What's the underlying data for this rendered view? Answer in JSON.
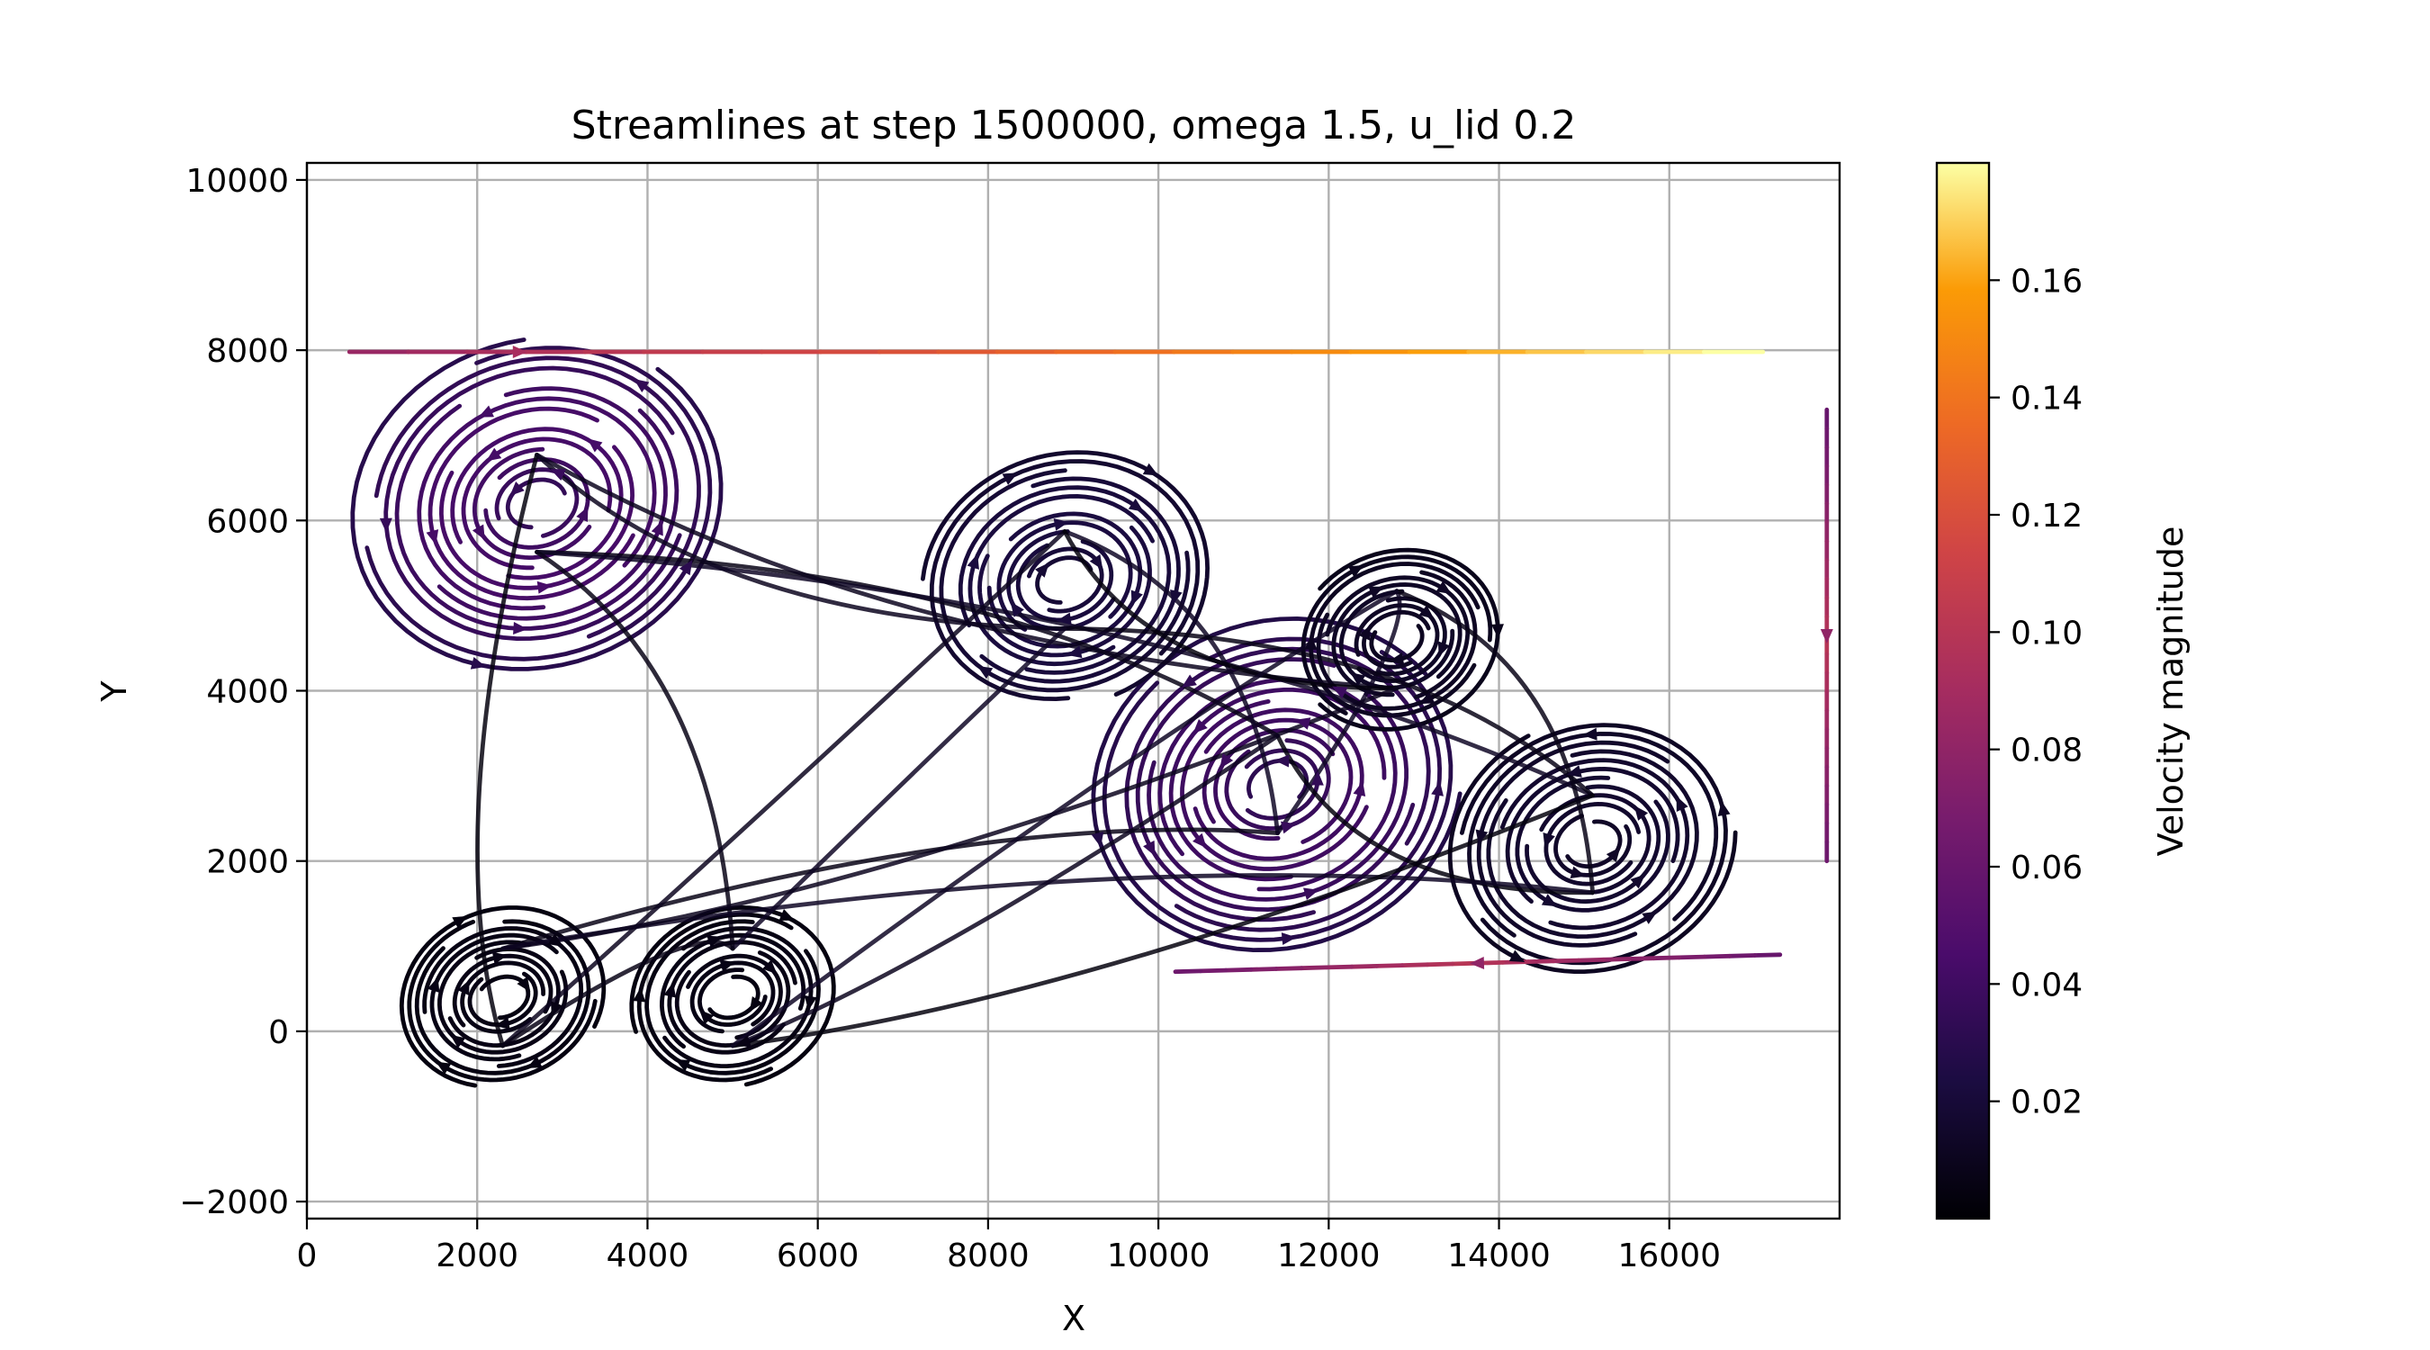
{
  "chart_data": {
    "type": "streamplot",
    "title": "Streamlines at step 1500000, omega 1.5, u_lid 0.2",
    "xlabel": "X",
    "ylabel": "Y",
    "xlim": [
      0,
      18000
    ],
    "ylim": [
      -2200,
      10200
    ],
    "xticks": [
      0,
      2000,
      4000,
      6000,
      8000,
      10000,
      12000,
      14000,
      16000
    ],
    "yticks": [
      -2000,
      0,
      2000,
      4000,
      6000,
      8000,
      10000
    ],
    "grid": true,
    "colormap": "inferno",
    "colorbar": {
      "label": "Velocity magnitude",
      "range": [
        0.0,
        0.18
      ],
      "ticks": [
        0.02,
        0.04,
        0.06,
        0.08,
        0.1,
        0.12,
        0.14,
        0.16
      ],
      "tick_labels": [
        "0.02",
        "0.04",
        "0.06",
        "0.08",
        "0.10",
        "0.12",
        "0.14",
        "0.16"
      ]
    },
    "domain": {
      "x": [
        0,
        18000
      ],
      "y": [
        0,
        8000
      ]
    },
    "lid_speed": 0.2,
    "vortices": [
      {
        "name": "upper-left vortex",
        "x": 2700,
        "y": 6200,
        "rotation": "counterclockwise",
        "max_speed": 0.065
      },
      {
        "name": "central vortex",
        "x": 11400,
        "y": 2900,
        "rotation": "counterclockwise",
        "max_speed": 0.06
      },
      {
        "name": "upper-middle vortex",
        "x": 8900,
        "y": 5300,
        "rotation": "clockwise",
        "max_speed": 0.035
      },
      {
        "name": "right vortex",
        "x": 15100,
        "y": 2200,
        "rotation": "counterclockwise",
        "max_speed": 0.025
      },
      {
        "name": "lower-left small vortex",
        "x": 2300,
        "y": 400,
        "rotation": "clockwise",
        "max_speed": 0.01
      },
      {
        "name": "lower-middle small vortex",
        "x": 5000,
        "y": 400,
        "rotation": "clockwise",
        "max_speed": 0.01
      },
      {
        "name": "mid-right eddy",
        "x": 12800,
        "y": 4600,
        "rotation": "clockwise",
        "max_speed": 0.02
      }
    ],
    "boundary_flows": [
      {
        "name": "lid flow",
        "from": [
          500,
          7980
        ],
        "to": [
          17100,
          7980
        ],
        "speed_range": [
          0.08,
          0.18
        ]
      },
      {
        "name": "right wall descent",
        "from": [
          17850,
          7300
        ],
        "to": [
          17850,
          2000
        ],
        "speed_range": [
          0.06,
          0.1
        ]
      },
      {
        "name": "bottom return",
        "from": [
          17300,
          900
        ],
        "to": [
          10200,
          700
        ],
        "speed_range": [
          0.06,
          0.1
        ]
      }
    ]
  }
}
